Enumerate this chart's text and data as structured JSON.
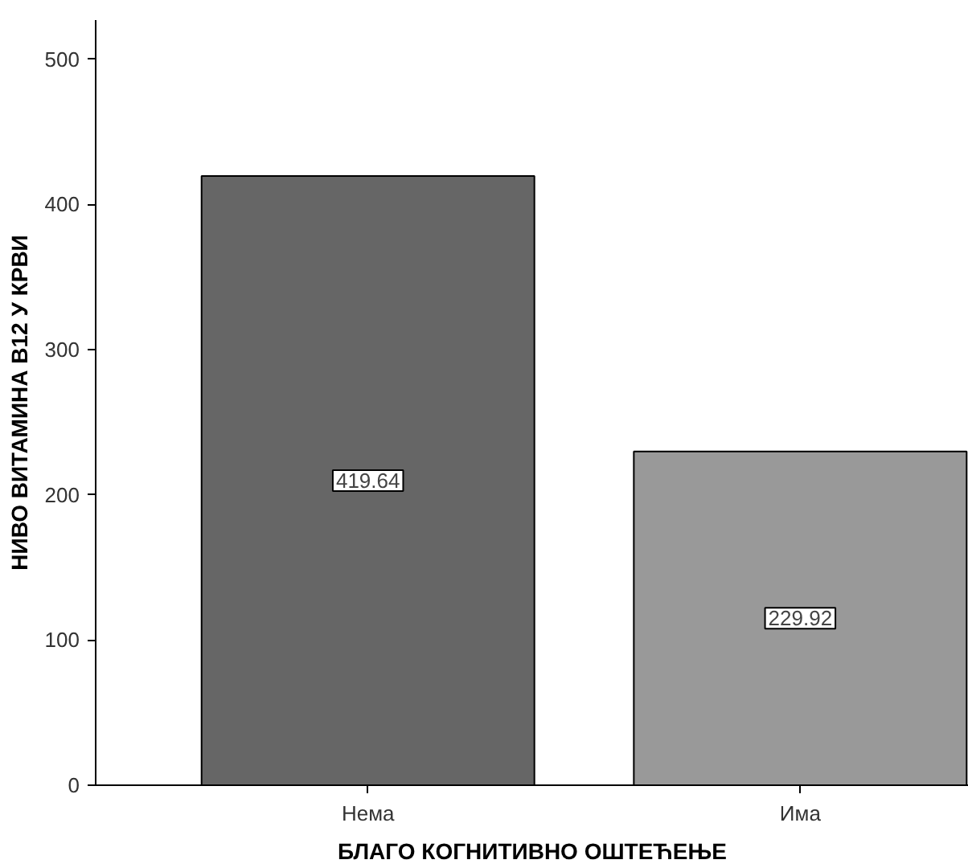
{
  "chart_data": {
    "type": "bar",
    "xlabel": "БЛАГО КОГНИТИВНО ОШТЕЋЕЊЕ",
    "ylabel": "НИВО ВИТАМИНА B12 У КРВИ",
    "categories": [
      "Нема",
      "Има"
    ],
    "values": [
      419.64,
      229.92
    ],
    "colors": [
      "#666666",
      "#999999"
    ],
    "ylim": [
      0,
      527
    ],
    "yticks": [
      0,
      100,
      200,
      300,
      400,
      500
    ],
    "grid": false,
    "data_labels": true
  }
}
